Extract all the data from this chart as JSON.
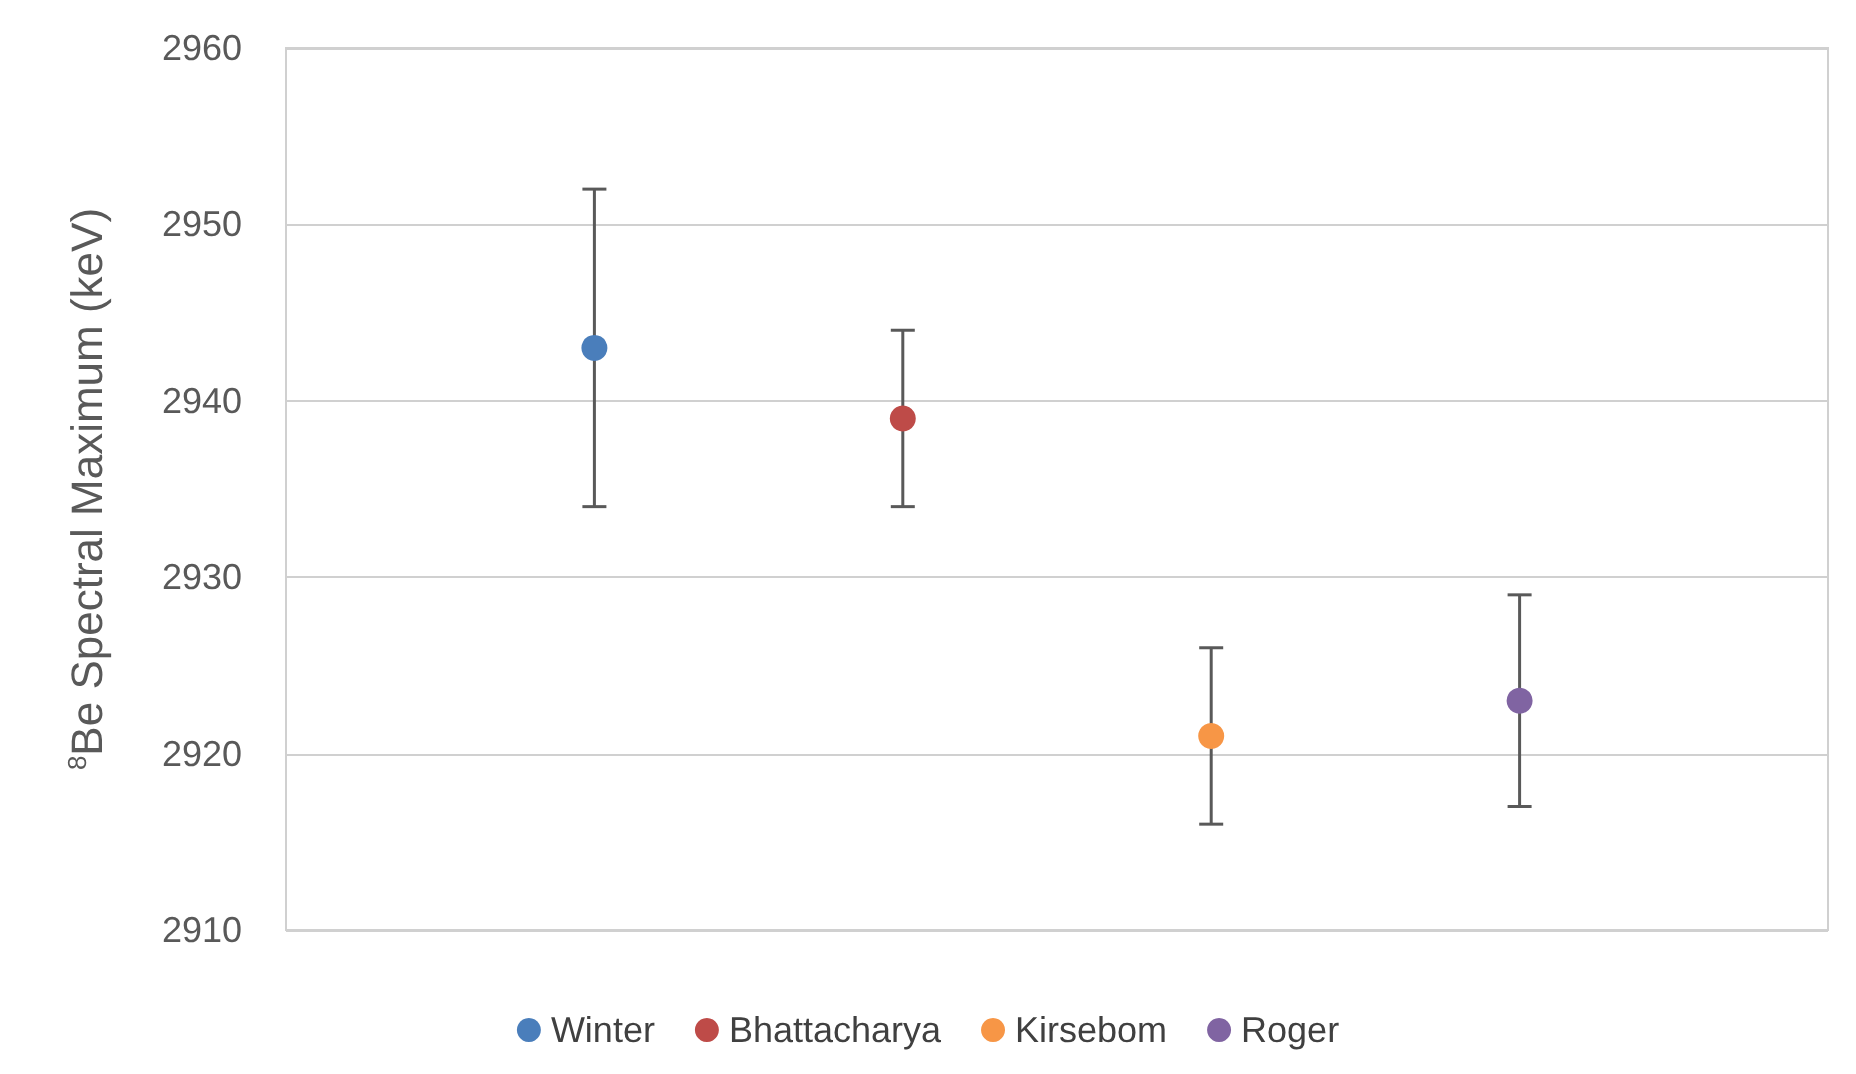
{
  "chart_data": {
    "type": "scatter",
    "ylabel": "$^{8}$Be Spectral Maximum (keV)",
    "categories": [
      null,
      null,
      null,
      null
    ],
    "ylim": [
      2910,
      2960
    ],
    "yticks": [
      2910,
      2920,
      2930,
      2940,
      2950,
      2960
    ],
    "grid": "y",
    "legend": "bottom",
    "marker": "circle",
    "tick_labels": "y",
    "series": [
      {
        "name": "Winter",
        "color": "#4a7ebb",
        "values": [
          2943,
          null,
          null,
          null
        ],
        "errors": [
          9,
          null,
          null,
          null
        ]
      },
      {
        "name": "Bhattacharya",
        "color": "#be4b48",
        "values": [
          null,
          2939,
          null,
          null
        ],
        "errors": [
          null,
          5,
          null,
          null
        ]
      },
      {
        "name": "Kirsebom",
        "color": "#f79646",
        "values": [
          null,
          null,
          2921,
          null
        ],
        "errors": [
          null,
          null,
          5,
          null
        ]
      },
      {
        "name": "Roger",
        "color": "#8064a2",
        "values": [
          null,
          null,
          null,
          2923
        ],
        "errors": [
          null,
          null,
          null,
          6
        ]
      }
    ]
  }
}
